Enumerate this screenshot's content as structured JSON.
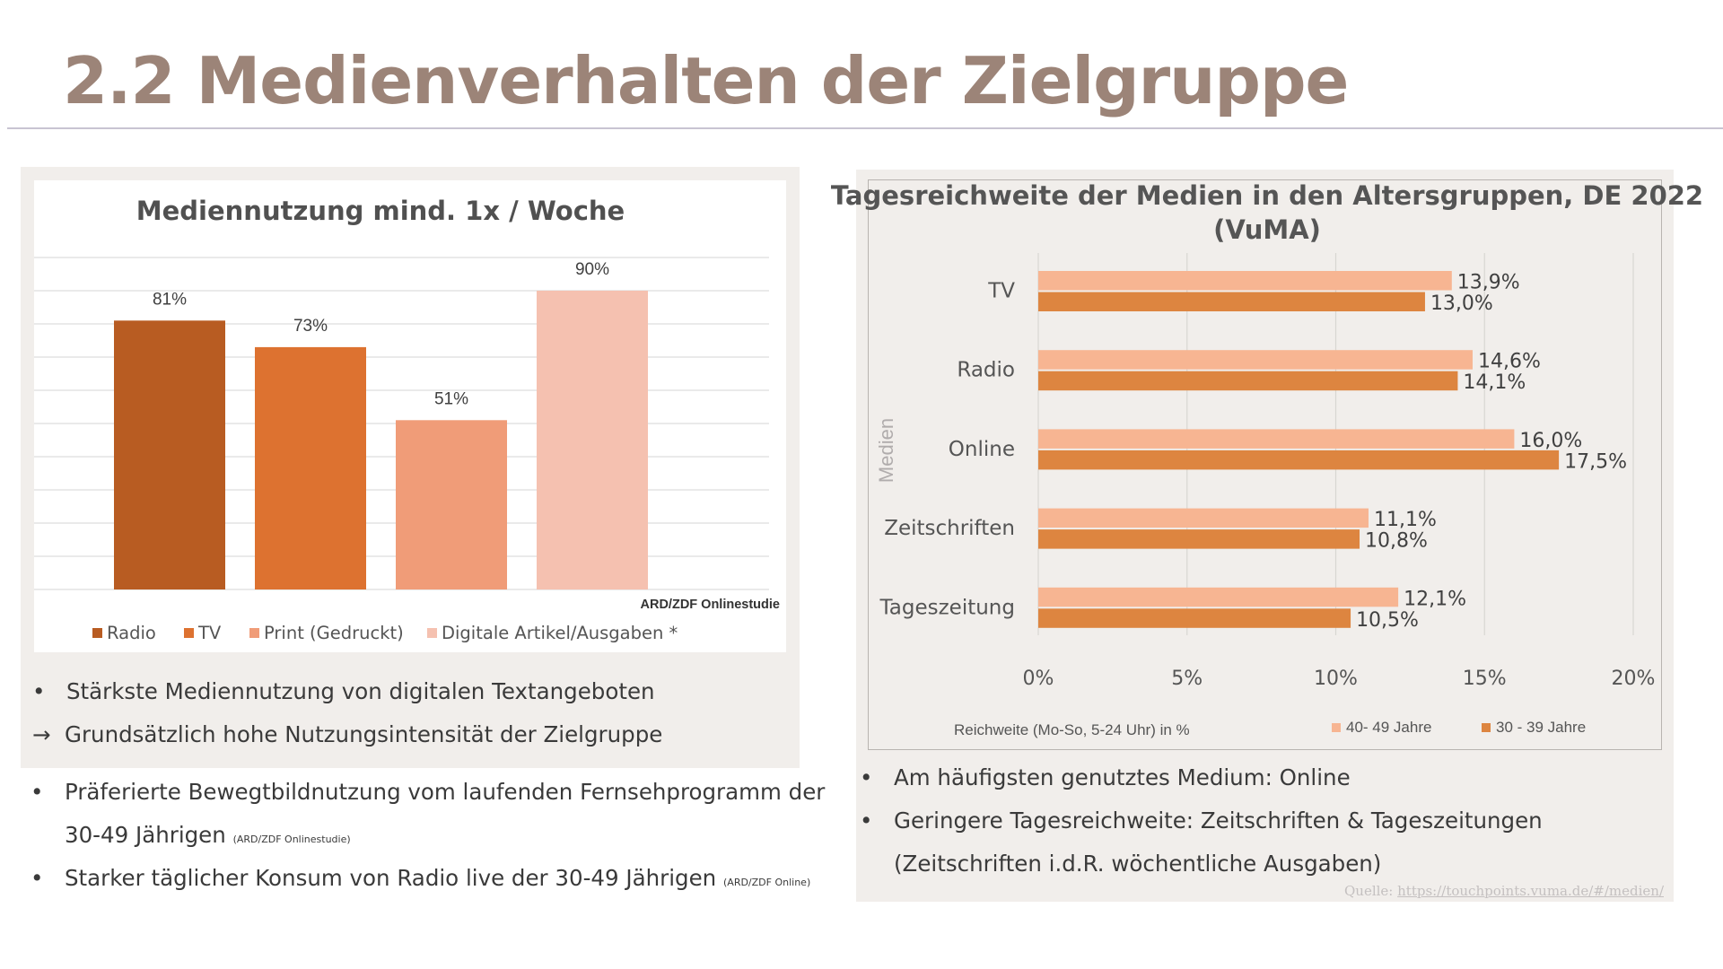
{
  "slide": {
    "title": "2.2 Medienverhalten der Zielgruppe"
  },
  "colors": {
    "title": "#9c8478",
    "panel_bg": "#f1eeeb",
    "radio": "#b85c22",
    "tv": "#dd7230",
    "print": "#f09c78",
    "digital": "#f5c1b0",
    "age_40_49": "#f7b592",
    "age_30_39": "#dd8540"
  },
  "left_bullets": {
    "b1": "Stärkste Mediennutzung von digitalen Textangeboten",
    "b2": "Grundsätzlich hohe Nutzungsintensität der Zielgruppe",
    "b3_line1": "Präferierte Bewegtbildnutzung vom laufenden Fernsehprogramm der",
    "b3_line2": "30-49 Jährigen",
    "b3_src": "(ARD/ZDF Onlinestudie)",
    "b4": "Starker täglicher Konsum von Radio live der 30-49 Jährigen",
    "b4_src": "(ARD/ZDF Online)"
  },
  "right_bullets": {
    "b1": "Am häufigsten genutztes Medium: Online",
    "b2_line1": "Geringere Tagesreichweite: Zeitschriften & Tageszeitungen",
    "b2_line2": "(Zeitschriften i.d.R. wöchentliche Ausgaben)"
  },
  "source": {
    "prefix": "Quelle: ",
    "url": "https://touchpoints.vuma.de/#/medien/"
  },
  "chart_data": [
    {
      "type": "bar",
      "title": "Mediennutzung mind. 1x / Woche",
      "categories": [
        "Radio",
        "TV",
        "Print (Gedruckt)",
        "Digitale Artikel/Ausgaben *"
      ],
      "values": [
        81,
        73,
        51,
        90
      ],
      "value_labels": [
        "81%",
        "73%",
        "51%",
        "90%"
      ],
      "colors": [
        "#b85c22",
        "#dd7230",
        "#f09c78",
        "#f5c1b0"
      ],
      "ylim": [
        0,
        100
      ],
      "grid": true,
      "legend": "bottom",
      "annotation": "ARD/ZDF Onlinestudie"
    },
    {
      "type": "bar",
      "orientation": "horizontal",
      "title": "Tagesreichweite der Medien in den Altersgruppen, DE 2022 (VuMA)",
      "title_line1": "Tagesreichweite der Medien in den Altersgruppen, DE 2022",
      "title_line2": "(VuMA)",
      "categories": [
        "TV",
        "Radio",
        "Online",
        "Zeitschriften",
        "Tageszeitung"
      ],
      "series": [
        {
          "name": "40- 49 Jahre",
          "values": [
            13.9,
            14.6,
            16.0,
            11.1,
            12.1
          ],
          "labels": [
            "13,9%",
            "14,6%",
            "16,0%",
            "11,1%",
            "12,1%"
          ],
          "color": "#f7b592"
        },
        {
          "name": "30 - 39 Jahre",
          "values": [
            13.0,
            14.1,
            17.5,
            10.8,
            10.5
          ],
          "labels": [
            "13,0%",
            "14,1%",
            "17,5%",
            "10,8%",
            "10,5%"
          ],
          "color": "#dd8540"
        }
      ],
      "xlim": [
        0,
        20
      ],
      "xticks": [
        0,
        5,
        10,
        15,
        20
      ],
      "xtick_labels": [
        "0%",
        "5%",
        "10%",
        "15%",
        "20%"
      ],
      "xlabel": "Reichweite (Mo-So, 5-24 Uhr) in %",
      "ylabel": "Medien",
      "grid": true,
      "legend": "bottom-right"
    }
  ]
}
